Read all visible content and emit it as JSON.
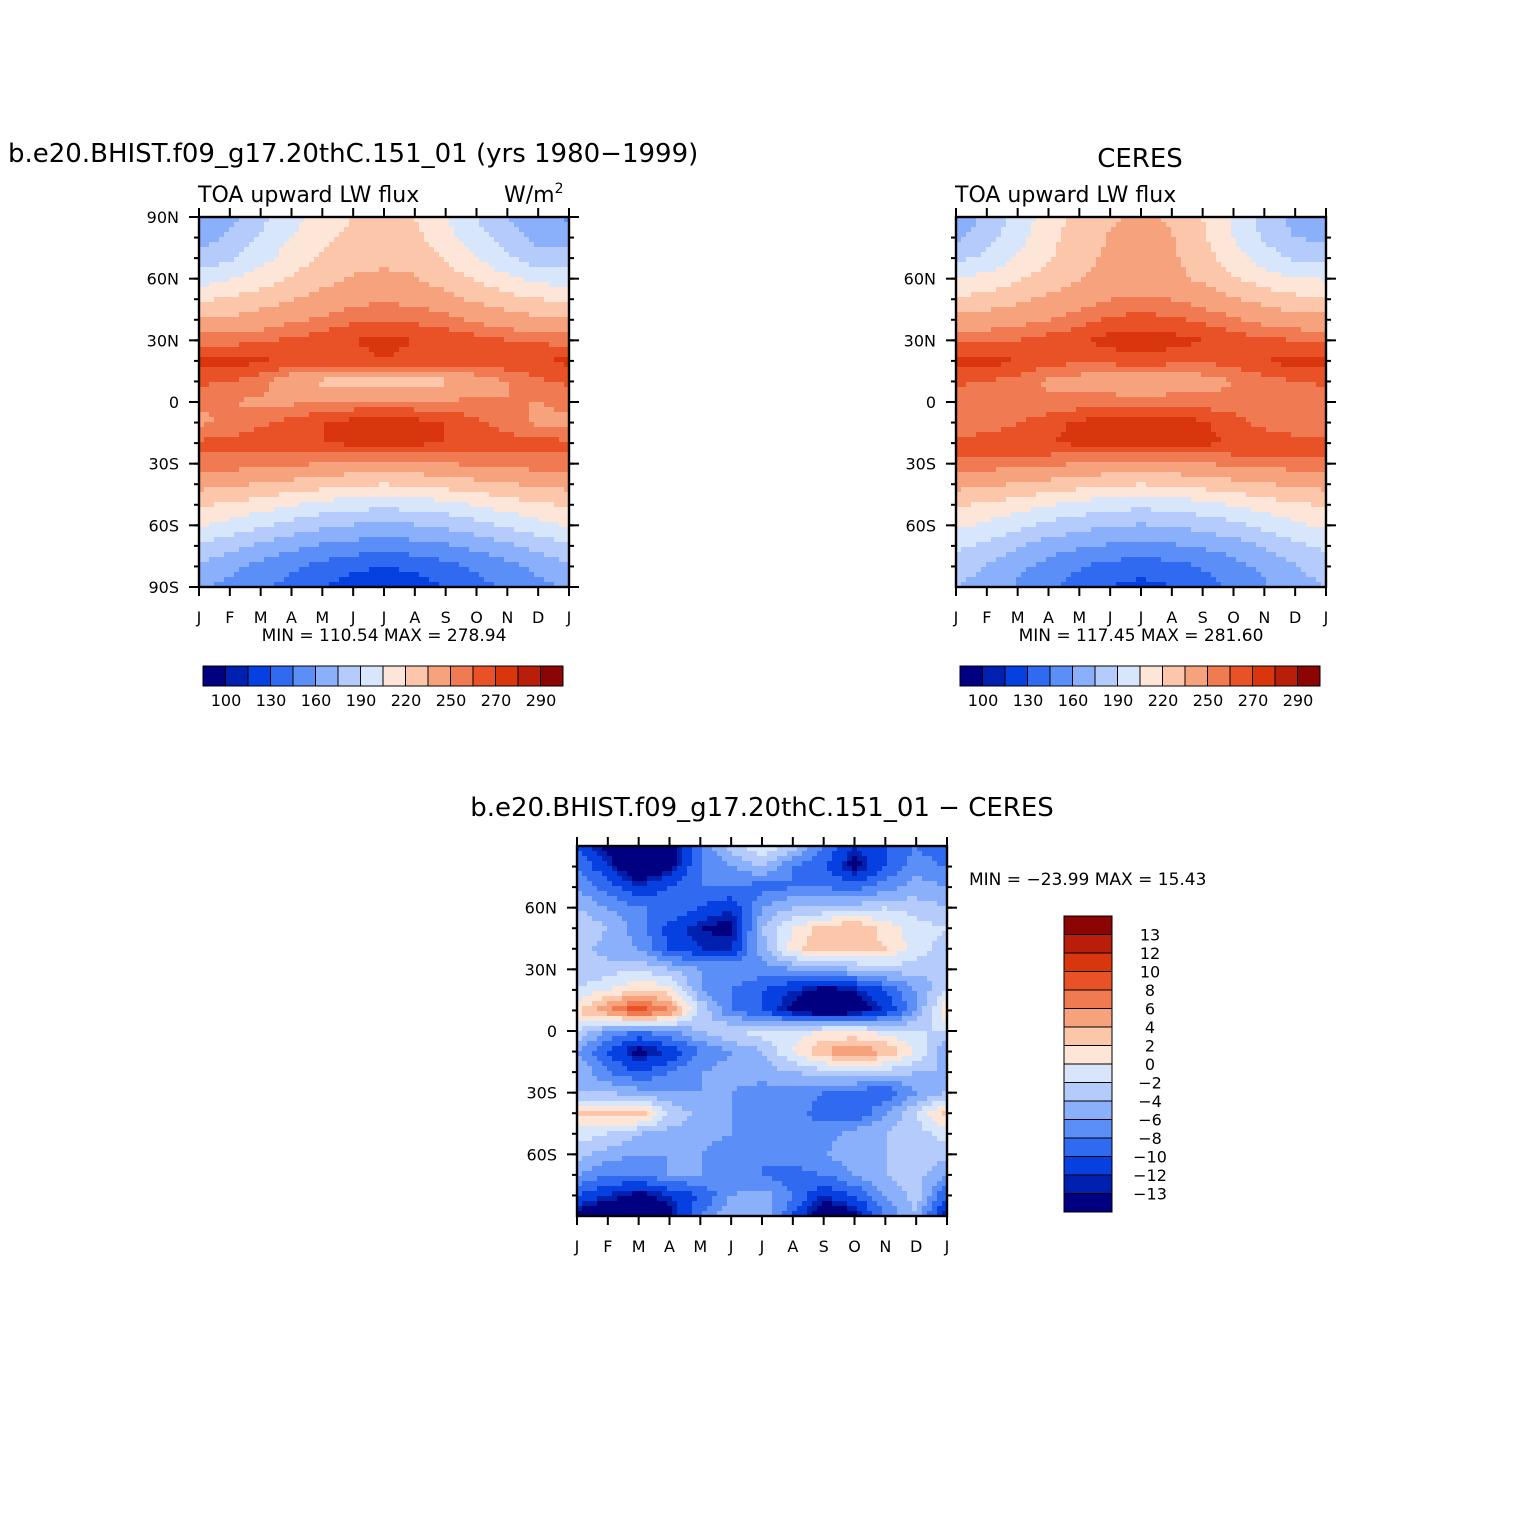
{
  "chart_data": [
    {
      "type": "heatmap",
      "title": "b.e20.BHIST.f09_g17.20thC.151_01 (yrs 1980−1999)",
      "subtitle_left": "TOA upward LW flux",
      "units_base": "W/m",
      "units_exp": "2",
      "x_tick_labels": [
        "J",
        "F",
        "M",
        "A",
        "M",
        "J",
        "J",
        "A",
        "S",
        "O",
        "N",
        "D",
        "J"
      ],
      "y_tick_labels": [
        "90N",
        "60N",
        "30N",
        "0",
        "30S",
        "60S",
        "90S"
      ],
      "y_tick_values": [
        90,
        60,
        30,
        0,
        -30,
        -60,
        -90
      ],
      "ylim": [
        -90,
        90
      ],
      "stats": "MIN = 110.54 MAX = 278.94",
      "colorbar_labels": [
        "100",
        "130",
        "160",
        "190",
        "220",
        "250",
        "270",
        "290"
      ],
      "field": {
        "lat": [
          90,
          80,
          70,
          60,
          50,
          40,
          30,
          20,
          10,
          0,
          -10,
          -20,
          -30,
          -40,
          -50,
          -60,
          -70,
          -80,
          -90
        ],
        "months": [
          "Jan",
          "Feb",
          "Mar",
          "Apr",
          "May",
          "Jun",
          "Jul",
          "Aug",
          "Sep",
          "Oct",
          "Nov",
          "Dec",
          "Jan"
        ],
        "values": [
          [
            158,
            170,
            185,
            200,
            212,
            220,
            222,
            220,
            205,
            190,
            175,
            162,
            158
          ],
          [
            168,
            178,
            192,
            205,
            216,
            224,
            226,
            224,
            210,
            196,
            182,
            170,
            168
          ],
          [
            180,
            188,
            200,
            212,
            222,
            230,
            232,
            230,
            218,
            205,
            192,
            182,
            180
          ],
          [
            198,
            204,
            212,
            222,
            230,
            236,
            238,
            236,
            228,
            218,
            208,
            200,
            198
          ],
          [
            218,
            222,
            228,
            234,
            240,
            246,
            248,
            246,
            240,
            232,
            226,
            220,
            218
          ],
          [
            236,
            238,
            242,
            248,
            252,
            258,
            260,
            258,
            254,
            248,
            242,
            238,
            236
          ],
          [
            256,
            256,
            258,
            262,
            266,
            270,
            272,
            270,
            268,
            264,
            260,
            258,
            256
          ],
          [
            272,
            274,
            272,
            268,
            266,
            268,
            270,
            268,
            266,
            266,
            268,
            270,
            272
          ],
          [
            262,
            260,
            254,
            240,
            232,
            226,
            224,
            226,
            232,
            242,
            250,
            258,
            262
          ],
          [
            252,
            250,
            248,
            248,
            250,
            252,
            252,
            252,
            252,
            252,
            250,
            250,
            252
          ],
          [
            248,
            252,
            258,
            264,
            270,
            274,
            276,
            274,
            270,
            262,
            254,
            248,
            248
          ],
          [
            262,
            264,
            266,
            268,
            270,
            272,
            272,
            272,
            270,
            268,
            266,
            264,
            262
          ],
          [
            258,
            256,
            254,
            252,
            250,
            248,
            246,
            248,
            250,
            252,
            254,
            256,
            258
          ],
          [
            240,
            238,
            234,
            230,
            226,
            222,
            220,
            222,
            226,
            230,
            234,
            238,
            240
          ],
          [
            222,
            218,
            212,
            206,
            200,
            196,
            194,
            196,
            200,
            206,
            212,
            218,
            222
          ],
          [
            206,
            200,
            192,
            184,
            178,
            174,
            172,
            174,
            178,
            184,
            192,
            200,
            206
          ],
          [
            188,
            180,
            172,
            164,
            158,
            154,
            152,
            154,
            158,
            164,
            172,
            180,
            188
          ],
          [
            172,
            164,
            156,
            148,
            140,
            134,
            130,
            134,
            140,
            148,
            156,
            164,
            172
          ],
          [
            162,
            156,
            148,
            140,
            130,
            122,
            115,
            122,
            130,
            140,
            148,
            156,
            162
          ]
        ]
      }
    },
    {
      "type": "heatmap",
      "title": "CERES",
      "subtitle_left": "TOA upward LW flux",
      "x_tick_labels": [
        "J",
        "F",
        "M",
        "A",
        "M",
        "J",
        "J",
        "A",
        "S",
        "O",
        "N",
        "D",
        "J"
      ],
      "y_tick_labels": [
        "60N",
        "30N",
        "0",
        "30S",
        "60S"
      ],
      "y_tick_values": [
        60,
        30,
        0,
        -30,
        -60
      ],
      "ylim": [
        -90,
        90
      ],
      "stats": "MIN = 117.45 MAX = 281.60",
      "colorbar_labels": [
        "100",
        "130",
        "160",
        "190",
        "220",
        "250",
        "270",
        "290"
      ],
      "field": {
        "lat": [
          90,
          80,
          70,
          60,
          50,
          40,
          30,
          20,
          10,
          0,
          -10,
          -20,
          -30,
          -40,
          -50,
          -60,
          -70,
          -80,
          -90
        ],
        "months": [
          "Jan",
          "Feb",
          "Mar",
          "Apr",
          "May",
          "Jun",
          "Jul",
          "Aug",
          "Sep",
          "Oct",
          "Nov",
          "Dec",
          "Jan"
        ],
        "values": [
          [
            165,
            178,
            195,
            212,
            226,
            234,
            236,
            234,
            220,
            202,
            184,
            170,
            165
          ],
          [
            172,
            184,
            200,
            215,
            228,
            236,
            238,
            236,
            222,
            205,
            188,
            175,
            172
          ],
          [
            186,
            194,
            206,
            218,
            230,
            238,
            240,
            238,
            226,
            212,
            198,
            188,
            186
          ],
          [
            204,
            210,
            218,
            226,
            234,
            240,
            242,
            240,
            232,
            222,
            212,
            206,
            204
          ],
          [
            222,
            226,
            232,
            238,
            244,
            250,
            252,
            250,
            244,
            236,
            230,
            224,
            222
          ],
          [
            240,
            242,
            246,
            250,
            256,
            262,
            264,
            262,
            258,
            252,
            246,
            242,
            240
          ],
          [
            258,
            258,
            260,
            264,
            268,
            274,
            276,
            274,
            270,
            266,
            262,
            260,
            258
          ],
          [
            274,
            274,
            270,
            264,
            262,
            264,
            266,
            264,
            262,
            264,
            270,
            274,
            274
          ],
          [
            262,
            260,
            256,
            248,
            244,
            240,
            238,
            240,
            244,
            250,
            256,
            260,
            262
          ],
          [
            252,
            252,
            252,
            252,
            254,
            256,
            256,
            256,
            254,
            254,
            252,
            252,
            252
          ],
          [
            250,
            254,
            260,
            266,
            272,
            276,
            278,
            276,
            272,
            264,
            256,
            250,
            250
          ],
          [
            264,
            266,
            268,
            270,
            272,
            274,
            274,
            274,
            272,
            270,
            268,
            266,
            264
          ],
          [
            258,
            256,
            254,
            252,
            250,
            248,
            247,
            248,
            250,
            252,
            254,
            256,
            258
          ],
          [
            240,
            238,
            234,
            230,
            226,
            222,
            220,
            222,
            226,
            230,
            234,
            238,
            240
          ],
          [
            222,
            218,
            212,
            206,
            200,
            196,
            194,
            196,
            200,
            206,
            212,
            218,
            222
          ],
          [
            208,
            202,
            194,
            186,
            180,
            176,
            174,
            176,
            180,
            186,
            194,
            202,
            208
          ],
          [
            194,
            186,
            176,
            168,
            162,
            158,
            156,
            158,
            162,
            168,
            176,
            186,
            194
          ],
          [
            182,
            174,
            164,
            154,
            146,
            140,
            136,
            140,
            146,
            154,
            164,
            174,
            182
          ],
          [
            176,
            168,
            158,
            148,
            138,
            130,
            125,
            130,
            138,
            148,
            158,
            168,
            176
          ]
        ]
      }
    },
    {
      "type": "heatmap",
      "title": "b.e20.BHIST.f09_g17.20thC.151_01 − CERES",
      "x_tick_labels": [
        "J",
        "F",
        "M",
        "A",
        "M",
        "J",
        "J",
        "A",
        "S",
        "O",
        "N",
        "D",
        "J"
      ],
      "y_tick_labels": [
        "60N",
        "30N",
        "0",
        "30S",
        "60S"
      ],
      "y_tick_values": [
        60,
        30,
        0,
        -30,
        -60
      ],
      "ylim": [
        -90,
        90
      ],
      "stats": "MIN = −23.99 MAX =   15.43",
      "colorbar_labels": [
        "13",
        "12",
        "10",
        "8",
        "6",
        "4",
        "2",
        "0",
        "−2",
        "−4",
        "−6",
        "−8",
        "−10",
        "−12",
        "−13"
      ],
      "field": {
        "lat": [
          90,
          80,
          70,
          60,
          50,
          40,
          30,
          20,
          10,
          0,
          -10,
          -20,
          -30,
          -40,
          -50,
          -60,
          -70,
          -80,
          -90
        ],
        "months": [
          "Jan",
          "Feb",
          "Mar",
          "Apr",
          "May",
          "Jun",
          "Jul",
          "Aug",
          "Sep",
          "Oct",
          "Nov",
          "Dec",
          "Jan"
        ],
        "values": [
          [
            -10,
            -14,
            -16,
            -14,
            -8,
            -3,
            0,
            -3,
            -8,
            -12,
            -10,
            -8,
            -10
          ],
          [
            -8,
            -12,
            -16,
            -14,
            -8,
            -6,
            -4,
            -8,
            -10,
            -14,
            -10,
            -7,
            -8
          ],
          [
            -6,
            -9,
            -12,
            -10,
            -8,
            -8,
            -9,
            -8,
            -8,
            -9,
            -7,
            -5,
            -6
          ],
          [
            -4,
            -6,
            -8,
            -8,
            -10,
            -12,
            -6,
            -4,
            -4,
            -3,
            -2,
            -3,
            -4
          ],
          [
            -2,
            -4,
            -7,
            -11,
            -13,
            -14,
            -4,
            0,
            3,
            4,
            1,
            -1,
            -2
          ],
          [
            -3,
            -5,
            -6,
            -10,
            -12,
            -12,
            -5,
            1,
            4,
            3,
            2,
            -1,
            -3
          ],
          [
            -4,
            -3,
            -2,
            -4,
            -6,
            -6,
            -7,
            -6,
            -5,
            -4,
            -3,
            -3,
            -4
          ],
          [
            -2,
            0,
            2,
            1,
            -6,
            -8,
            -10,
            -12,
            -14,
            -13,
            -10,
            -6,
            -2
          ],
          [
            2,
            6,
            10,
            6,
            -2,
            -8,
            -10,
            -14,
            -16,
            -15,
            -12,
            -6,
            2
          ],
          [
            -2,
            -6,
            -8,
            -6,
            -4,
            -2,
            -1,
            -1,
            0,
            0,
            -1,
            -2,
            -2
          ],
          [
            -6,
            -10,
            -14,
            -12,
            -8,
            -6,
            -4,
            0,
            4,
            6,
            4,
            0,
            -6
          ],
          [
            -4,
            -8,
            -10,
            -8,
            -6,
            -5,
            -5,
            -4,
            -3,
            -2,
            -3,
            -4,
            -4
          ],
          [
            -4,
            -4,
            -5,
            -6,
            -6,
            -6,
            -7,
            -7,
            -8,
            -9,
            -10,
            -6,
            -4
          ],
          [
            3,
            3,
            4,
            -2,
            -5,
            -6,
            -7,
            -7,
            -9,
            -10,
            -6,
            -2,
            3
          ],
          [
            -1,
            -2,
            -4,
            -5,
            -5,
            -6,
            -7,
            -8,
            -7,
            -5,
            -4,
            -3,
            -1
          ],
          [
            -3,
            -5,
            -6,
            -6,
            -6,
            -8,
            -8,
            -7,
            -6,
            -5,
            -4,
            -3,
            -3
          ],
          [
            -6,
            -8,
            -8,
            -6,
            -6,
            -7,
            -8,
            -9,
            -8,
            -6,
            -4,
            -3,
            -6
          ],
          [
            -10,
            -12,
            -14,
            -12,
            -10,
            -6,
            -5,
            -8,
            -12,
            -10,
            -6,
            -3,
            -10
          ],
          [
            -14,
            -16,
            -16,
            -14,
            -8,
            -4,
            -4,
            -10,
            -16,
            -14,
            -8,
            -4,
            -14
          ]
        ]
      }
    }
  ],
  "palettes": {
    "lw": [
      "#000080",
      "#0020b0",
      "#0640e0",
      "#2f6af0",
      "#5c8ef8",
      "#8ab0fc",
      "#b5cbfb",
      "#d8e6fb",
      "#fde6d8",
      "#fcc6ab",
      "#f6a27d",
      "#f07a52",
      "#e85226",
      "#d9360e",
      "#b81e0a",
      "#8c0505"
    ],
    "lw_levels": [
      100,
      115,
      130,
      145,
      160,
      175,
      190,
      205,
      220,
      235,
      250,
      260,
      270,
      280,
      290
    ],
    "diff": [
      "#000080",
      "#0020b0",
      "#0640e0",
      "#2f6af0",
      "#5c8ef8",
      "#8ab0fc",
      "#b5cbfb",
      "#d8e6fb",
      "#fde6d8",
      "#fcc6ab",
      "#f6a27d",
      "#f07a52",
      "#e85226",
      "#d9360e",
      "#b81e0a",
      "#8c0505"
    ],
    "diff_levels": [
      -13,
      -12,
      -10,
      -8,
      -6,
      -4,
      -2,
      0,
      2,
      4,
      6,
      8,
      10,
      12,
      13
    ]
  }
}
